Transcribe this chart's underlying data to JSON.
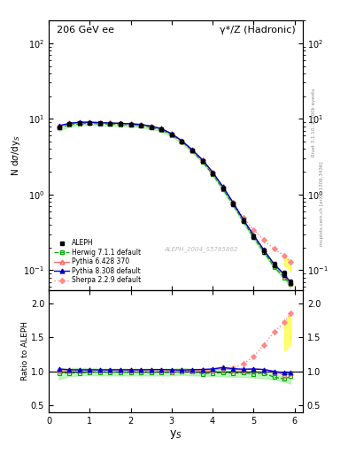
{
  "title_left": "206 GeV ee",
  "title_right": "γ*/Z (Hadronic)",
  "xlabel": "y_S",
  "ylabel_main": "N dσ/dy_S",
  "ylabel_ratio": "Ratio to ALEPH",
  "watermark": "ALEPH_2004_S5765862",
  "right_label": "Rivet 3.1.10, ≥ 400k events",
  "right_label2": "mcplots.cern.ch [arXiv:1306.3436]",
  "x": [
    0.25,
    0.5,
    0.75,
    1.0,
    1.25,
    1.5,
    1.75,
    2.0,
    2.25,
    2.5,
    2.75,
    3.0,
    3.25,
    3.5,
    3.75,
    4.0,
    4.25,
    4.5,
    4.75,
    5.0,
    5.25,
    5.5,
    5.75,
    5.9
  ],
  "aleph_y": [
    7.8,
    8.5,
    8.8,
    8.8,
    8.7,
    8.6,
    8.5,
    8.4,
    8.2,
    7.8,
    7.2,
    6.2,
    5.0,
    3.8,
    2.8,
    1.9,
    1.2,
    0.75,
    0.45,
    0.28,
    0.18,
    0.12,
    0.09,
    0.07
  ],
  "aleph_yerr": [
    0.3,
    0.3,
    0.3,
    0.3,
    0.3,
    0.3,
    0.3,
    0.3,
    0.3,
    0.3,
    0.3,
    0.2,
    0.2,
    0.15,
    0.1,
    0.08,
    0.06,
    0.04,
    0.03,
    0.02,
    0.015,
    0.01,
    0.008,
    0.006
  ],
  "herwig_y": [
    7.6,
    8.3,
    8.6,
    8.7,
    8.6,
    8.5,
    8.4,
    8.3,
    8.1,
    7.7,
    7.1,
    6.1,
    5.0,
    3.8,
    2.7,
    1.85,
    1.18,
    0.73,
    0.44,
    0.27,
    0.175,
    0.11,
    0.08,
    0.065
  ],
  "pythia6_y": [
    8.0,
    8.7,
    9.0,
    9.0,
    8.9,
    8.8,
    8.7,
    8.6,
    8.4,
    8.0,
    7.4,
    6.3,
    5.1,
    3.85,
    2.85,
    1.95,
    1.25,
    0.77,
    0.46,
    0.29,
    0.185,
    0.12,
    0.085,
    0.068
  ],
  "pythia8_y": [
    8.1,
    8.7,
    9.0,
    9.0,
    8.9,
    8.8,
    8.7,
    8.6,
    8.4,
    8.0,
    7.4,
    6.35,
    5.1,
    3.9,
    2.88,
    1.97,
    1.27,
    0.78,
    0.465,
    0.29,
    0.185,
    0.12,
    0.088,
    0.069
  ],
  "sherpa_y": [
    8.0,
    8.6,
    8.9,
    8.9,
    8.8,
    8.7,
    8.6,
    8.5,
    8.3,
    7.9,
    7.3,
    6.2,
    5.05,
    3.85,
    2.85,
    1.95,
    1.26,
    0.79,
    0.5,
    0.34,
    0.25,
    0.19,
    0.155,
    0.13
  ],
  "herwig_ratio": [
    0.974,
    0.976,
    0.977,
    0.989,
    0.989,
    0.988,
    0.988,
    0.988,
    0.988,
    0.987,
    0.986,
    0.984,
    1.0,
    1.0,
    0.964,
    0.974,
    0.983,
    0.973,
    0.978,
    0.964,
    0.972,
    0.917,
    0.889,
    0.929
  ],
  "pythia6_ratio": [
    1.026,
    1.024,
    1.023,
    1.023,
    1.023,
    1.023,
    1.024,
    1.024,
    1.024,
    1.026,
    1.028,
    1.016,
    1.02,
    1.013,
    1.018,
    1.026,
    1.042,
    1.027,
    1.022,
    1.036,
    1.028,
    1.0,
    0.944,
    0.971
  ],
  "pythia8_ratio": [
    1.038,
    1.024,
    1.023,
    1.023,
    1.023,
    1.023,
    1.024,
    1.024,
    1.024,
    1.026,
    1.028,
    1.024,
    1.02,
    1.026,
    1.029,
    1.037,
    1.058,
    1.04,
    1.033,
    1.036,
    1.028,
    1.0,
    0.978,
    0.986
  ],
  "sherpa_ratio": [
    1.026,
    1.012,
    1.011,
    1.011,
    1.011,
    1.012,
    1.012,
    1.012,
    1.012,
    1.013,
    1.014,
    1.0,
    1.01,
    1.013,
    1.018,
    1.026,
    1.05,
    1.053,
    1.111,
    1.214,
    1.389,
    1.583,
    1.722,
    1.857
  ],
  "herwig_band_lo": [
    0.88,
    0.93,
    0.94,
    0.95,
    0.94,
    0.94,
    0.94,
    0.94,
    0.94,
    0.94,
    0.94,
    0.94,
    0.95,
    0.94,
    0.94,
    0.93,
    0.93,
    0.92,
    0.92,
    0.91,
    0.9,
    0.88,
    0.85,
    0.82
  ],
  "herwig_band_hi": [
    1.02,
    1.05,
    1.05,
    1.05,
    1.04,
    1.04,
    1.04,
    1.04,
    1.04,
    1.04,
    1.04,
    1.04,
    1.05,
    1.04,
    1.03,
    1.03,
    1.02,
    1.01,
    1.0,
    0.99,
    0.98,
    0.96,
    0.93,
    0.9
  ],
  "sherpa_band_lo": [
    1.0,
    1.0,
    1.0,
    1.0,
    1.0,
    1.0,
    1.0,
    1.0,
    1.0,
    1.0,
    1.0,
    1.0,
    1.0,
    1.0,
    1.0,
    1.0,
    1.0,
    1.0,
    1.0,
    1.0,
    1.0,
    1.0,
    1.3,
    1.4
  ],
  "sherpa_band_hi": [
    1.0,
    1.0,
    1.0,
    1.0,
    1.0,
    1.0,
    1.0,
    1.0,
    1.0,
    1.0,
    1.0,
    1.0,
    1.0,
    1.0,
    1.0,
    1.0,
    1.0,
    1.0,
    1.0,
    1.0,
    1.0,
    1.0,
    1.7,
    1.85
  ],
  "ylim_main": [
    0.055,
    200
  ],
  "ylim_ratio": [
    0.4,
    2.2
  ],
  "xlim": [
    0,
    6.2
  ],
  "yticks_ratio": [
    0.5,
    1.0,
    1.5,
    2.0
  ]
}
